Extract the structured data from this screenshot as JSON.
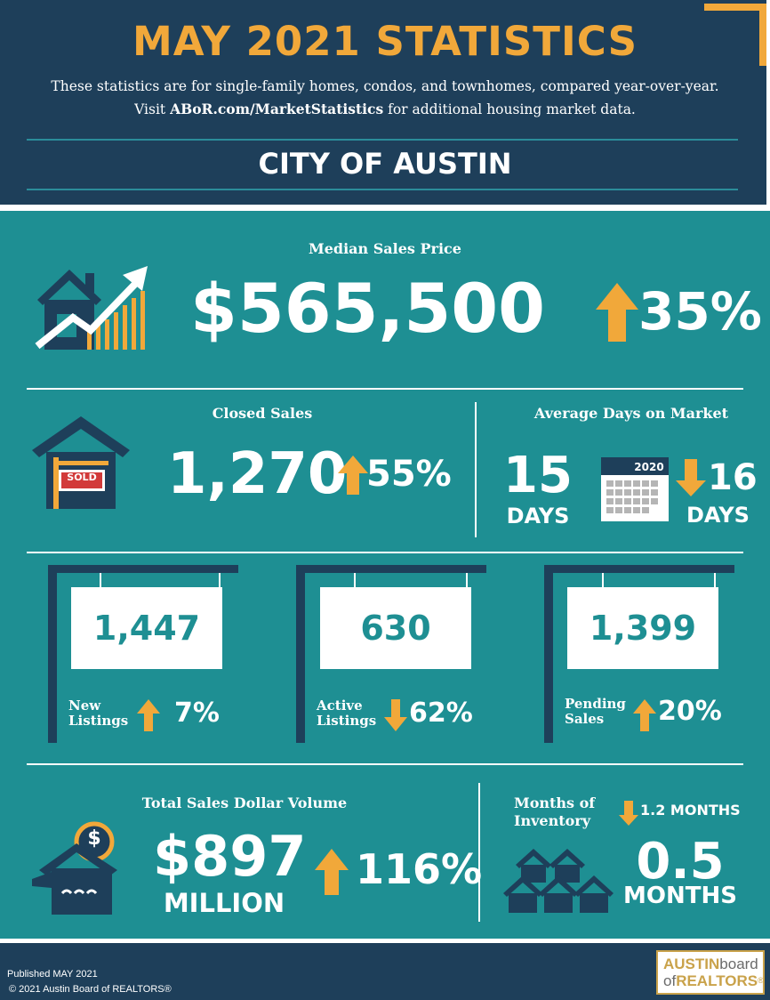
{
  "header": {
    "title": "MAY 2021 STATISTICS",
    "subtitle_line1": "These statistics are for single-family homes, condos, and townhomes, compared year-over-year.",
    "subtitle_line2_pre": "Visit ",
    "subtitle_link": "ABoR.com/MarketStatistics",
    "subtitle_line2_post": " for additional housing market data.",
    "city": "CITY OF AUSTIN"
  },
  "median": {
    "label": "Median Sales Price",
    "value": "$565,500",
    "change": "35%",
    "direction": "up",
    "icon": "house-chart-icon"
  },
  "closed": {
    "label": "Closed Sales",
    "value": "1,270",
    "change": "55%",
    "direction": "up",
    "sold_text": "SOLD"
  },
  "dom": {
    "label": "Average Days on Market",
    "value": "15",
    "unit": "DAYS",
    "calendar_year": "2020",
    "prev_value": "16",
    "prev_unit": "DAYS",
    "direction": "down"
  },
  "listings": [
    {
      "label_line1": "New",
      "label_line2": "Listings",
      "value": "1,447",
      "change": "7%",
      "direction": "up"
    },
    {
      "label_line1": "Active",
      "label_line2": "Listings",
      "value": "630",
      "change": "62%",
      "direction": "down"
    },
    {
      "label_line1": "Pending",
      "label_line2": "Sales",
      "value": "1,399",
      "change": "20%",
      "direction": "up"
    }
  ],
  "volume": {
    "label": "Total Sales Dollar Volume",
    "value": "$897",
    "unit": "MILLION",
    "change": "116%",
    "direction": "up",
    "coin_symbol": "$"
  },
  "inventory": {
    "label_line1": "Months of",
    "label_line2": "Inventory",
    "prev": "1.2 MONTHS",
    "value": "0.5",
    "unit": "MONTHS",
    "direction": "down"
  },
  "footer": {
    "published": "Published MAY 2021",
    "copyright": "© 2021 Austin Board of REALTORS®",
    "logo_line1_a": "AUSTIN",
    "logo_line1_b": "board",
    "logo_line2_a": "of",
    "logo_line2_b": "REALTORS"
  },
  "colors": {
    "navy": "#1e3f5a",
    "teal": "#1e8f93",
    "orange": "#f1a83a",
    "white": "#ffffff"
  }
}
